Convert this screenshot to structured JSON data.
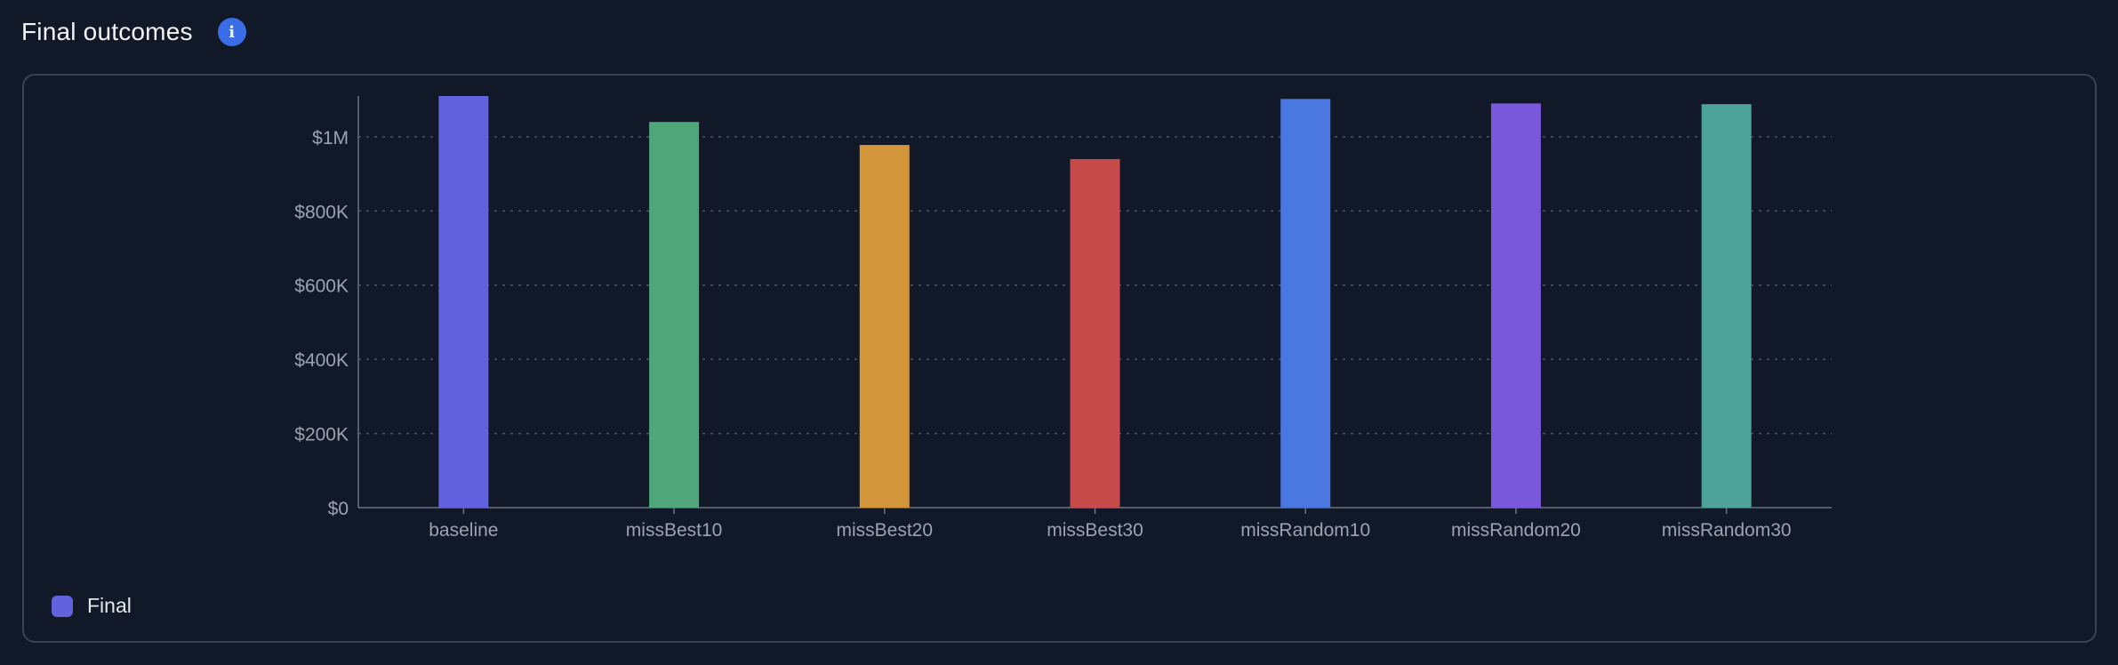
{
  "header": {
    "title": "Final outcomes",
    "info_icon": "info-icon",
    "info_glyph": "i",
    "info_color": "#3b6ee6"
  },
  "legend": {
    "items": [
      {
        "label": "Final",
        "color": "#6262de"
      }
    ]
  },
  "chart_data": {
    "type": "bar",
    "categories": [
      "baseline",
      "missBest10",
      "missBest20",
      "missBest30",
      "missRandom10",
      "missRandom20",
      "missRandom30"
    ],
    "series": [
      {
        "values": [
          1110000,
          1040000,
          978000,
          940000,
          1102000,
          1090000,
          1088000
        ],
        "colors": [
          "#6262de",
          "#4fa67b",
          "#d4963a",
          "#c84b4b",
          "#4a78e0",
          "#7a58db",
          "#4da397"
        ]
      }
    ],
    "yticks": [
      0,
      200000,
      400000,
      600000,
      800000,
      1000000
    ],
    "ytick_labels": [
      "$0",
      "$200K",
      "$400K",
      "$600K",
      "$800K",
      "$1M"
    ],
    "ylim": [
      0,
      1110000
    ],
    "grid": true,
    "legend_position": "bottom-left"
  }
}
